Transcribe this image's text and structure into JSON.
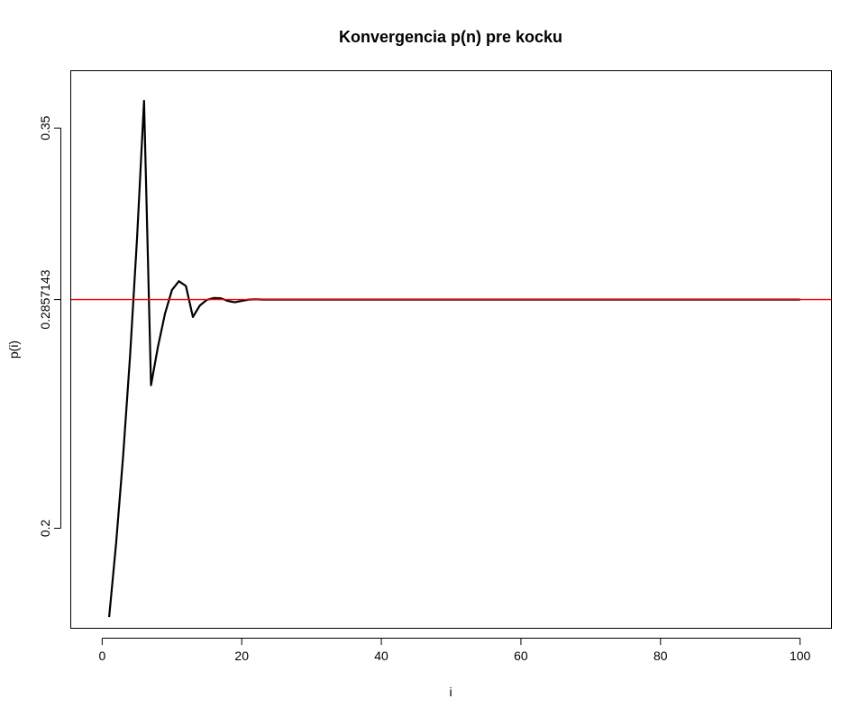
{
  "chart_data": {
    "type": "line",
    "title": "Konvergencia p(n) pre kocku",
    "xlabel": "i",
    "ylabel": "p(i)",
    "xlim": [
      -4.5,
      104.5
    ],
    "ylim": [
      0.1625,
      0.3715
    ],
    "x_ticks": [
      0,
      20,
      40,
      60,
      80,
      100
    ],
    "x_tick_labels": [
      "0",
      "20",
      "40",
      "60",
      "80",
      "100"
    ],
    "y_ticks": [
      0.2,
      0.2857143,
      0.35
    ],
    "y_tick_labels": [
      "0.2",
      "0.2857143",
      "0.35"
    ],
    "grid": false,
    "series": [
      {
        "color": "#000000",
        "x": [
          1,
          2,
          3,
          4,
          5,
          6,
          7,
          8,
          9,
          10,
          11,
          12,
          13,
          14,
          15,
          16,
          17,
          18,
          19,
          20,
          21,
          22,
          23,
          24,
          25,
          26,
          27,
          28,
          29,
          30,
          31,
          32,
          33,
          34,
          35,
          36,
          37,
          38,
          39,
          40,
          41,
          42,
          43,
          44,
          45,
          46,
          47,
          48,
          49,
          50,
          51,
          52,
          53,
          54,
          55,
          56,
          57,
          58,
          59,
          60,
          61,
          62,
          63,
          64,
          65,
          66,
          67,
          68,
          69,
          70,
          71,
          72,
          73,
          74,
          75,
          76,
          77,
          78,
          79,
          80,
          81,
          82,
          83,
          84,
          85,
          86,
          87,
          88,
          89,
          90,
          91,
          92,
          93,
          94,
          95,
          96,
          97,
          98,
          99,
          100
        ],
        "y": [
          0.1667,
          0.1944,
          0.2269,
          0.2647,
          0.3088,
          0.3602,
          0.2536,
          0.2681,
          0.2804,
          0.2893,
          0.2926,
          0.2908,
          0.2792,
          0.2835,
          0.2856,
          0.2863,
          0.2862,
          0.2852,
          0.2847,
          0.2852,
          0.2857,
          0.2858,
          0.2857,
          0.2857,
          0.2857,
          0.2857,
          0.2857,
          0.2857,
          0.2857,
          0.2857,
          0.2857,
          0.2857,
          0.2857,
          0.2857,
          0.2857,
          0.2857,
          0.2857,
          0.2857,
          0.2857,
          0.2857,
          0.2857,
          0.2857,
          0.2857,
          0.2857,
          0.2857,
          0.2857,
          0.2857,
          0.2857,
          0.2857,
          0.2857,
          0.2857,
          0.2857,
          0.2857,
          0.2857,
          0.2857,
          0.2857,
          0.2857,
          0.2857,
          0.2857,
          0.2857,
          0.2857,
          0.2857,
          0.2857,
          0.2857,
          0.2857,
          0.2857,
          0.2857,
          0.2857,
          0.2857,
          0.2857,
          0.2857,
          0.2857,
          0.2857,
          0.2857,
          0.2857,
          0.2857,
          0.2857,
          0.2857,
          0.2857,
          0.2857,
          0.2857,
          0.2857,
          0.2857,
          0.2857,
          0.2857,
          0.2857,
          0.2857,
          0.2857,
          0.2857,
          0.2857,
          0.2857,
          0.2857,
          0.2857,
          0.2857,
          0.2857,
          0.2857,
          0.2857,
          0.2857,
          0.2857,
          0.2857
        ]
      }
    ],
    "reference_line": {
      "orientation": "horizontal",
      "y": 0.2857143,
      "color": "#ff0000"
    }
  }
}
